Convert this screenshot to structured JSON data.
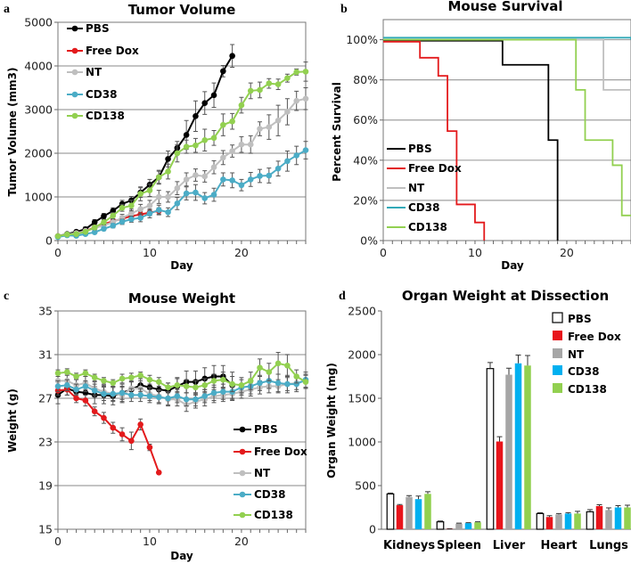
{
  "panels": [
    {
      "letter": "a",
      "chart_data": {
        "type": "line",
        "title": "Tumor Volume",
        "xlabel": "Day",
        "ylabel": "Tumor Volume (mm3)",
        "xlim": [
          0,
          27
        ],
        "ylim": [
          0,
          5000
        ],
        "xticks": [
          0,
          10,
          20
        ],
        "yticks": [
          0,
          1000,
          2000,
          3000,
          4000,
          5000
        ],
        "ytick_labels": [
          "0",
          "1000",
          "2000",
          "3000",
          "4000",
          "5000"
        ],
        "legend_position": "top-left",
        "series": [
          {
            "name": "PBS",
            "color": "#000000",
            "x0": 0,
            "values": [
              100,
              150,
              200,
              260,
              420,
              560,
              680,
              840,
              920,
              1100,
              1280,
              1450,
              1870,
              2120,
              2420,
              2850,
              3150,
              3330,
              3880,
              4230
            ],
            "err": [
              30,
              30,
              40,
              50,
              60,
              60,
              70,
              80,
              90,
              110,
              120,
              140,
              180,
              150,
              330,
              350,
              260,
              280,
              130,
              260
            ]
          },
          {
            "name": "Free Dox",
            "color": "#e31a1c",
            "x0": 0,
            "values": [
              100,
              130,
              170,
              220,
              300,
              380,
              440,
              500,
              560,
              600,
              640,
              680
            ],
            "err": [
              20,
              20,
              30,
              30,
              40,
              40,
              50,
              60,
              60,
              60,
              70,
              70
            ]
          },
          {
            "name": "NT",
            "color": "#bfbfbf",
            "x0": 0,
            "values": [
              100,
              140,
              170,
              220,
              280,
              350,
              420,
              520,
              620,
              720,
              800,
              1000,
              1000,
              1200,
              1400,
              1500,
              1470,
              1680,
              1900,
              2050,
              2200,
              2200,
              2560,
              2600,
              2750,
              2950,
              3200,
              3250
            ],
            "err": [
              30,
              30,
              40,
              40,
              50,
              60,
              70,
              80,
              100,
              110,
              120,
              150,
              120,
              150,
              150,
              140,
              130,
              150,
              160,
              140,
              180,
              200,
              160,
              280,
              350,
              300,
              220,
              250
            ]
          },
          {
            "name": "CD38",
            "color": "#4bacc6",
            "x0": 0,
            "values": [
              80,
              120,
              110,
              150,
              190,
              270,
              340,
              430,
              490,
              520,
              620,
              700,
              650,
              850,
              1080,
              1100,
              970,
              1050,
              1400,
              1380,
              1270,
              1400,
              1480,
              1490,
              1650,
              1820,
              1950,
              2070
            ],
            "err": [
              20,
              20,
              30,
              30,
              30,
              40,
              50,
              60,
              70,
              90,
              100,
              110,
              100,
              140,
              150,
              180,
              130,
              150,
              150,
              170,
              130,
              160,
              150,
              170,
              170,
              230,
              210,
              200
            ]
          },
          {
            "name": "CD138",
            "color": "#92d050",
            "x0": 0,
            "values": [
              100,
              140,
              150,
              200,
              300,
              420,
              570,
              750,
              800,
              1070,
              1150,
              1450,
              1580,
              2000,
              2150,
              2180,
              2300,
              2350,
              2650,
              2730,
              3100,
              3430,
              3450,
              3600,
              3580,
              3720,
              3860,
              3870
            ],
            "err": [
              30,
              30,
              40,
              40,
              50,
              60,
              70,
              80,
              120,
              160,
              140,
              160,
              170,
              200,
              150,
              160,
              250,
              170,
              250,
              180,
              180,
              180,
              180,
              110,
              120,
              90,
              70,
              220
            ]
          }
        ]
      }
    },
    {
      "letter": "b",
      "chart_data": {
        "type": "line",
        "subtype": "step",
        "title": "Mouse Survival",
        "xlabel": "Day",
        "ylabel": "Percent Survival",
        "xlim": [
          0,
          27
        ],
        "ylim": [
          0,
          110
        ],
        "xticks": [
          0,
          10,
          20
        ],
        "yticks": [
          0,
          20,
          40,
          60,
          80,
          100
        ],
        "ytick_labels": [
          "0%",
          "20%",
          "40%",
          "60%",
          "80%",
          "100%"
        ],
        "legend_position": "bottom-left",
        "series": [
          {
            "name": "PBS",
            "color": "#000000",
            "steps": [
              [
                0,
                99.5
              ],
              [
                13,
                87.5
              ],
              [
                18,
                50
              ],
              [
                19,
                0
              ]
            ]
          },
          {
            "name": "Free Dox",
            "color": "#e31a1c",
            "steps": [
              [
                0,
                99
              ],
              [
                4,
                91
              ],
              [
                6,
                82
              ],
              [
                7,
                54.5
              ],
              [
                8,
                18
              ],
              [
                10,
                9
              ],
              [
                11,
                0
              ]
            ]
          },
          {
            "name": "NT",
            "color": "#bfbfbf",
            "steps": [
              [
                0,
                100
              ],
              [
                24,
                75
              ],
              [
                27,
                75
              ]
            ]
          },
          {
            "name": "CD38",
            "color": "#31a9b8",
            "steps": [
              [
                0,
                101
              ],
              [
                27,
                100
              ]
            ]
          },
          {
            "name": "CD138",
            "color": "#92d050",
            "steps": [
              [
                0,
                100
              ],
              [
                21,
                75
              ],
              [
                22,
                50
              ],
              [
                25,
                37.5
              ],
              [
                26,
                12.5
              ],
              [
                27,
                12.5
              ]
            ]
          }
        ]
      }
    },
    {
      "letter": "c",
      "chart_data": {
        "type": "line",
        "title": "Mouse Weight",
        "xlabel": "Day",
        "ylabel": "Weight (g)",
        "xlim": [
          0,
          27
        ],
        "ylim": [
          15,
          35
        ],
        "xticks": [
          0,
          10,
          20
        ],
        "yticks": [
          15,
          19,
          23,
          27,
          31,
          35
        ],
        "ytick_labels": [
          "15",
          "19",
          "23",
          "27",
          "31",
          "35"
        ],
        "legend_position": "bottom-right",
        "series": [
          {
            "name": "PBS",
            "color": "#000000",
            "x0": 0,
            "values": [
              27.3,
              27.9,
              27.6,
              27.5,
              27.3,
              27.3,
              27.2,
              27.5,
              27.8,
              28.2,
              28.0,
              27.8,
              27.7,
              28.1,
              28.5,
              28.5,
              28.8,
              29.0,
              29.0,
              28.2
            ],
            "err": [
              0.8,
              0.6,
              0.6,
              0.7,
              0.8,
              0.8,
              0.8,
              0.8,
              0.7,
              0.6,
              0.7,
              0.7,
              0.7,
              0.8,
              1.0,
              1.0,
              1.0,
              1.0,
              1.0,
              1.2
            ]
          },
          {
            "name": "Free Dox",
            "color": "#e31a1c",
            "x0": 0,
            "values": [
              27.7,
              27.8,
              27.0,
              26.8,
              25.8,
              25.2,
              24.3,
              23.7,
              23.1,
              24.6,
              22.5,
              20.2
            ],
            "err": [
              0.4,
              0.5,
              0.4,
              0.5,
              0.4,
              0.5,
              0.5,
              0.6,
              0.8,
              0.5,
              0.3,
              0.1
            ]
          },
          {
            "name": "NT",
            "color": "#bfbfbf",
            "x0": 0,
            "values": [
              28.6,
              28.6,
              28.2,
              28.4,
              27.9,
              27.6,
              27.4,
              27.3,
              27.9,
              27.9,
              27.4,
              27.2,
              26.9,
              26.9,
              26.4,
              26.7,
              26.9,
              27.2,
              27.3,
              27.4,
              27.6,
              27.8,
              28.0,
              28.1,
              28.1,
              28.3,
              28.4,
              28.6
            ],
            "err": [
              0.6,
              0.6,
              0.6,
              0.6,
              0.6,
              0.6,
              0.7,
              0.7,
              0.7,
              0.7,
              0.6,
              0.6,
              0.6,
              0.6,
              0.6,
              0.6,
              0.6,
              0.6,
              0.6,
              0.6,
              0.6,
              0.6,
              0.6,
              0.6,
              0.6,
              0.6,
              0.6,
              0.6
            ]
          },
          {
            "name": "CD38",
            "color": "#4bacc6",
            "x0": 0,
            "values": [
              28.1,
              28.2,
              27.8,
              28.1,
              27.7,
              27.4,
              27.4,
              27.5,
              27.3,
              27.3,
              27.2,
              27.1,
              27.0,
              27.2,
              26.9,
              26.9,
              27.2,
              27.5,
              27.6,
              27.6,
              28.0,
              28.1,
              28.4,
              28.6,
              28.4,
              28.3,
              28.3,
              28.7
            ],
            "err": [
              0.5,
              0.5,
              0.5,
              0.5,
              0.6,
              0.6,
              0.6,
              0.6,
              0.6,
              0.6,
              0.6,
              0.6,
              0.6,
              0.6,
              0.6,
              0.6,
              0.6,
              0.7,
              0.7,
              0.7,
              0.7,
              0.7,
              0.7,
              0.7,
              0.8,
              0.8,
              0.7,
              0.7
            ]
          },
          {
            "name": "CD138",
            "color": "#92d050",
            "x0": 0,
            "values": [
              29.3,
              29.4,
              29.0,
              29.3,
              28.9,
              28.6,
              28.4,
              28.8,
              28.9,
              29.1,
              28.7,
              28.5,
              28.0,
              28.2,
              28.1,
              28.0,
              28.2,
              28.6,
              28.7,
              28.3,
              28.2,
              28.6,
              29.8,
              29.4,
              30.2,
              30.0,
              29.0,
              28.5
            ],
            "err": [
              0.3,
              0.3,
              0.3,
              0.3,
              0.3,
              0.3,
              0.3,
              0.4,
              0.4,
              0.3,
              0.4,
              0.4,
              0.4,
              0.6,
              0.6,
              0.6,
              0.6,
              0.6,
              0.7,
              0.7,
              0.7,
              0.8,
              0.8,
              0.8,
              1.0,
              1.0,
              0.6,
              0.6
            ]
          }
        ]
      }
    },
    {
      "letter": "d",
      "chart_data": {
        "type": "bar",
        "title": "Organ Weight at Dissection",
        "xlabel": "",
        "ylabel": "Organ Weight (mg)",
        "ylim": [
          0,
          2500
        ],
        "yticks": [
          0,
          500,
          1000,
          1500,
          2000,
          2500
        ],
        "ytick_labels": [
          "0",
          "500",
          "1000",
          "1500",
          "2000",
          "2500"
        ],
        "categories": [
          "Kidneys",
          "Spleen",
          "Liver",
          "Heart",
          "Lungs"
        ],
        "legend_position": "top-right",
        "series": [
          {
            "name": "PBS",
            "color": "#ffffff",
            "stroke": "#000000",
            "values": [
              405,
              85,
              1840,
              180,
              200
            ],
            "err": [
              10,
              10,
              70,
              10,
              25
            ]
          },
          {
            "name": "Free Dox",
            "color": "#e8141b",
            "values": [
              275,
              5,
              1005,
              140,
              265
            ],
            "err": [
              8,
              2,
              55,
              15,
              15
            ]
          },
          {
            "name": "NT",
            "color": "#a6a6a6",
            "values": [
              370,
              65,
              1770,
              170,
              220
            ],
            "err": [
              15,
              5,
              75,
              10,
              25
            ]
          },
          {
            "name": "CD38",
            "color": "#00b0f0",
            "values": [
              345,
              70,
              1900,
              180,
              250
            ],
            "err": [
              35,
              5,
              95,
              10,
              20
            ]
          },
          {
            "name": "CD138",
            "color": "#92d050",
            "values": [
              405,
              80,
              1875,
              180,
              250
            ],
            "err": [
              25,
              5,
              115,
              25,
              25
            ]
          }
        ]
      }
    }
  ]
}
